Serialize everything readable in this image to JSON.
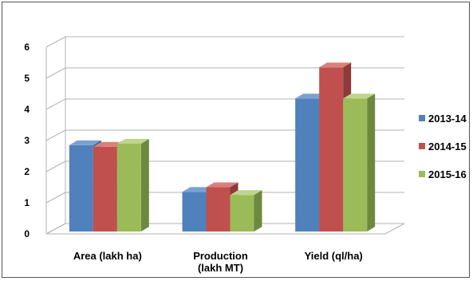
{
  "chart_data": {
    "type": "bar",
    "categories": [
      "Area (lakh ha)",
      "Production\n(lakh MT)",
      "Yield (ql/ha)"
    ],
    "series": [
      {
        "name": "2013-14",
        "values": [
          2.9,
          1.4,
          4.4
        ],
        "color": "#4F81BD",
        "top": "#7AA1D2",
        "side": "#3A6394"
      },
      {
        "name": "2014-15",
        "values": [
          2.85,
          1.55,
          5.4
        ],
        "color": "#C0504D",
        "top": "#D9807D",
        "side": "#8E3A38"
      },
      {
        "name": "2015-16",
        "values": [
          2.95,
          1.3,
          4.4
        ],
        "color": "#9BBB59",
        "top": "#BDD58C",
        "side": "#6F8840"
      }
    ],
    "ylim": [
      0,
      6
    ],
    "yticks": [
      0,
      1,
      2,
      3,
      4,
      5,
      6
    ],
    "grid": true,
    "legend": "right",
    "style": "3d-clustered-column"
  }
}
